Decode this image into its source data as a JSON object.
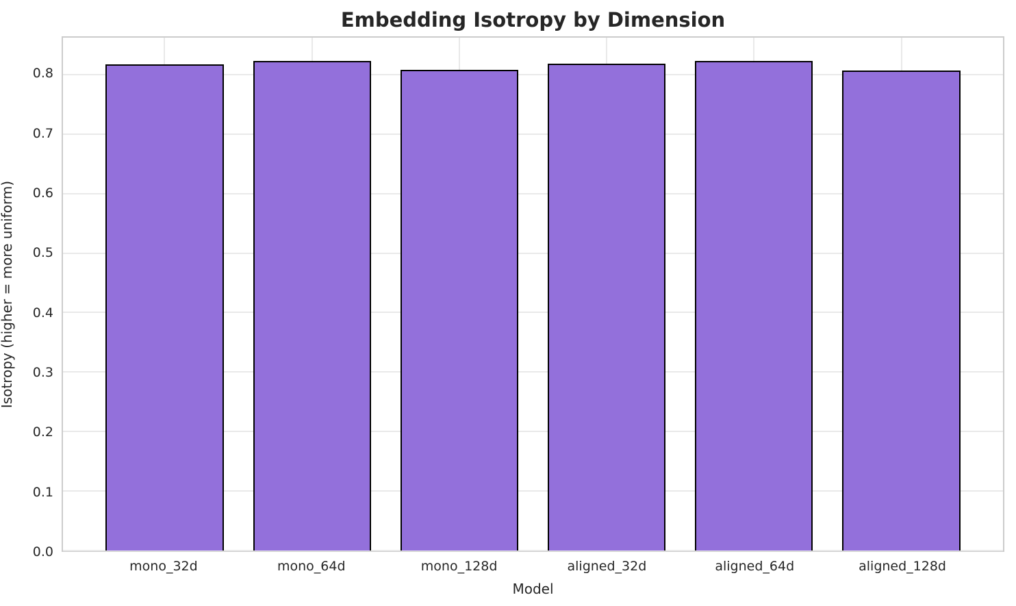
{
  "chart_data": {
    "type": "bar",
    "title": "Embedding Isotropy by Dimension",
    "xlabel": "Model",
    "ylabel": "Isotropy (higher = more uniform)",
    "categories": [
      "mono_32d",
      "mono_64d",
      "mono_128d",
      "aligned_32d",
      "aligned_64d",
      "aligned_128d"
    ],
    "values": [
      0.817,
      0.823,
      0.808,
      0.818,
      0.823,
      0.807
    ],
    "yticks": [
      "0.0",
      "0.1",
      "0.2",
      "0.3",
      "0.4",
      "0.5",
      "0.6",
      "0.7",
      "0.8"
    ],
    "ylim": [
      0,
      0.862
    ],
    "x_margin": 0.69,
    "bar_width": 0.8,
    "grid": true,
    "legend": null,
    "colors": {
      "bar_fill": "#9370DB",
      "bar_edge": "#000000",
      "grid_line": "#e9e9e9",
      "spine": "#cccccc",
      "text": "#262626"
    }
  }
}
